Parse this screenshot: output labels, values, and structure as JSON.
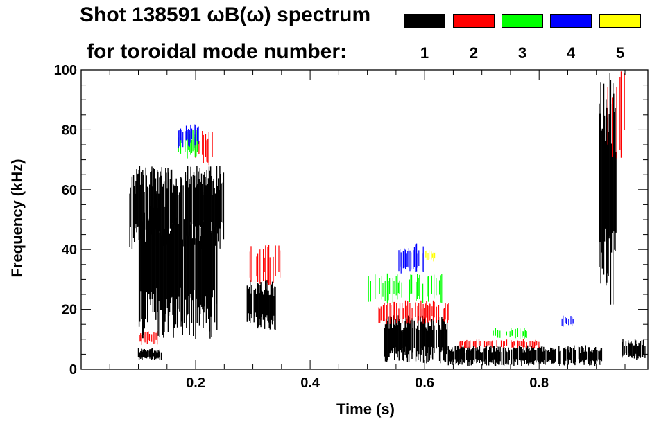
{
  "header": {
    "title_line1": "Shot 138591 ωB(ω) spectrum",
    "title_line2": "for toroidal mode number:"
  },
  "legend": [
    {
      "label": "1",
      "color": "#000000"
    },
    {
      "label": "2",
      "color": "#ff0000"
    },
    {
      "label": "3",
      "color": "#00ff00"
    },
    {
      "label": "4",
      "color": "#0000ff"
    },
    {
      "label": "5",
      "color": "#ffff00"
    }
  ],
  "chart_data": {
    "type": "heatmap",
    "title": "Shot 138591 ωB(ω) spectrum for toroidal mode number",
    "xlabel": "Time (s)",
    "ylabel": "Frequency (kHz)",
    "xlim": [
      0.0,
      0.99
    ],
    "ylim": [
      0,
      100
    ],
    "xticks": [
      {
        "value": 0.2,
        "label": "0.2"
      },
      {
        "value": 0.4,
        "label": "0.4"
      },
      {
        "value": 0.6,
        "label": "0.6"
      },
      {
        "value": 0.8,
        "label": "0.8"
      }
    ],
    "yticks": [
      {
        "value": 0,
        "label": "0"
      },
      {
        "value": 20,
        "label": "20"
      },
      {
        "value": 40,
        "label": "40"
      },
      {
        "value": 60,
        "label": "60"
      },
      {
        "value": 80,
        "label": "80"
      },
      {
        "value": 100,
        "label": "100"
      }
    ],
    "regions": [
      {
        "mode": 1,
        "t": [
          0.085,
          0.25
        ],
        "f": [
          40,
          68
        ]
      },
      {
        "mode": 1,
        "t": [
          0.1,
          0.24
        ],
        "f": [
          10,
          60
        ]
      },
      {
        "mode": 1,
        "t": [
          0.1,
          0.14
        ],
        "f": [
          3,
          7
        ]
      },
      {
        "mode": 2,
        "t": [
          0.1,
          0.135
        ],
        "f": [
          8,
          13
        ]
      },
      {
        "mode": 2,
        "t": [
          0.2,
          0.23
        ],
        "f": [
          68,
          80
        ]
      },
      {
        "mode": 3,
        "t": [
          0.17,
          0.21
        ],
        "f": [
          70,
          80
        ]
      },
      {
        "mode": 4,
        "t": [
          0.17,
          0.205
        ],
        "f": [
          74,
          82
        ]
      },
      {
        "mode": 1,
        "t": [
          0.29,
          0.34
        ],
        "f": [
          13,
          30
        ]
      },
      {
        "mode": 2,
        "t": [
          0.295,
          0.35
        ],
        "f": [
          28,
          42
        ]
      },
      {
        "mode": 1,
        "t": [
          0.53,
          0.64
        ],
        "f": [
          2,
          18
        ]
      },
      {
        "mode": 2,
        "t": [
          0.52,
          0.645
        ],
        "f": [
          15,
          23
        ]
      },
      {
        "mode": 3,
        "t": [
          0.5,
          0.63
        ],
        "f": [
          22,
          32
        ]
      },
      {
        "mode": 4,
        "t": [
          0.555,
          0.6
        ],
        "f": [
          32,
          42
        ]
      },
      {
        "mode": 5,
        "t": [
          0.6,
          0.62
        ],
        "f": [
          36,
          40
        ]
      },
      {
        "mode": 1,
        "t": [
          0.64,
          0.91
        ],
        "f": [
          1,
          8
        ]
      },
      {
        "mode": 2,
        "t": [
          0.66,
          0.8
        ],
        "f": [
          7,
          10
        ]
      },
      {
        "mode": 3,
        "t": [
          0.72,
          0.78
        ],
        "f": [
          10,
          14
        ]
      },
      {
        "mode": 4,
        "t": [
          0.84,
          0.86
        ],
        "f": [
          14,
          18
        ]
      },
      {
        "mode": 1,
        "t": [
          0.905,
          0.935
        ],
        "f": [
          20,
          100
        ]
      },
      {
        "mode": 2,
        "t": [
          0.92,
          0.95
        ],
        "f": [
          70,
          100
        ]
      },
      {
        "mode": 1,
        "t": [
          0.945,
          0.985
        ],
        "f": [
          3,
          10
        ]
      }
    ]
  }
}
